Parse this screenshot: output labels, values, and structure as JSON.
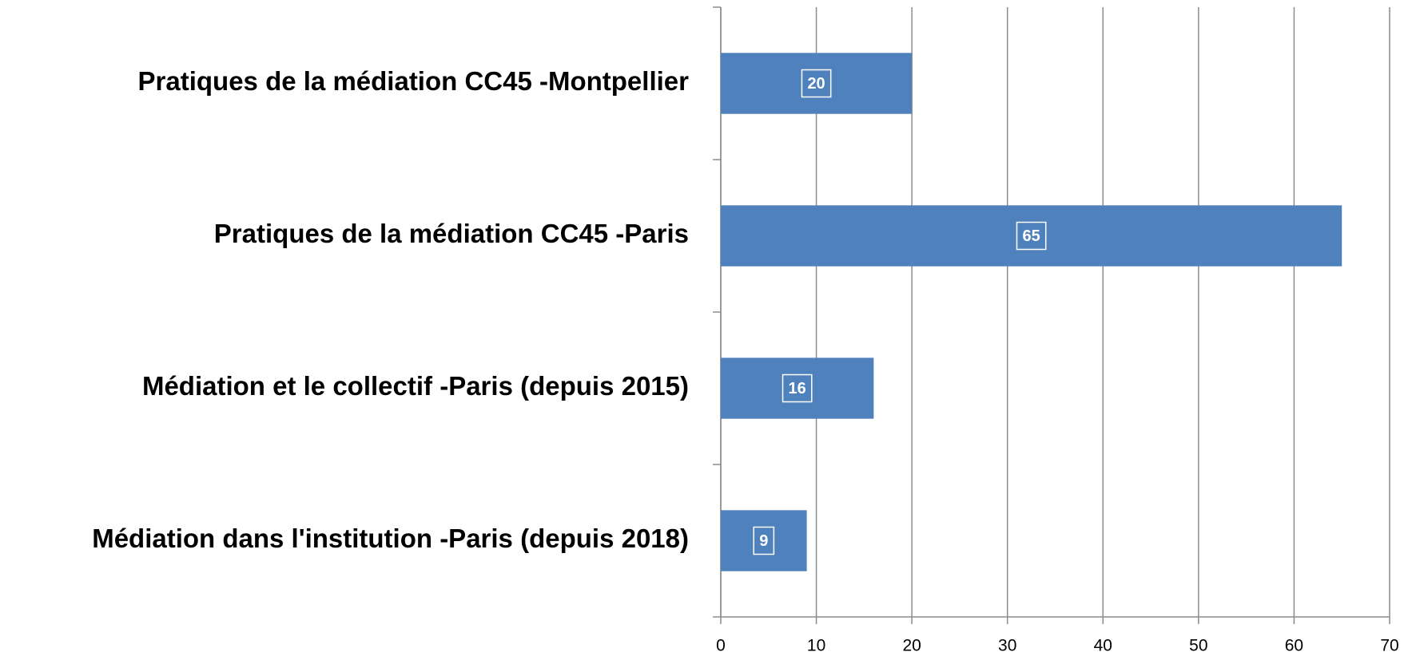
{
  "chart_data": {
    "type": "bar",
    "orientation": "horizontal",
    "categories": [
      "Pratiques de la médiation CC45 -Montpellier",
      "Pratiques de la médiation CC45 -Paris",
      "Médiation et le collectif -Paris (depuis 2015)",
      "Médiation dans l'institution -Paris (depuis 2018)"
    ],
    "values": [
      20,
      65,
      16,
      9
    ],
    "color": "#4f81bd",
    "xlim": [
      0,
      70
    ],
    "xticks": [
      0,
      10,
      20,
      30,
      40,
      50,
      60,
      70
    ],
    "grid": true
  }
}
